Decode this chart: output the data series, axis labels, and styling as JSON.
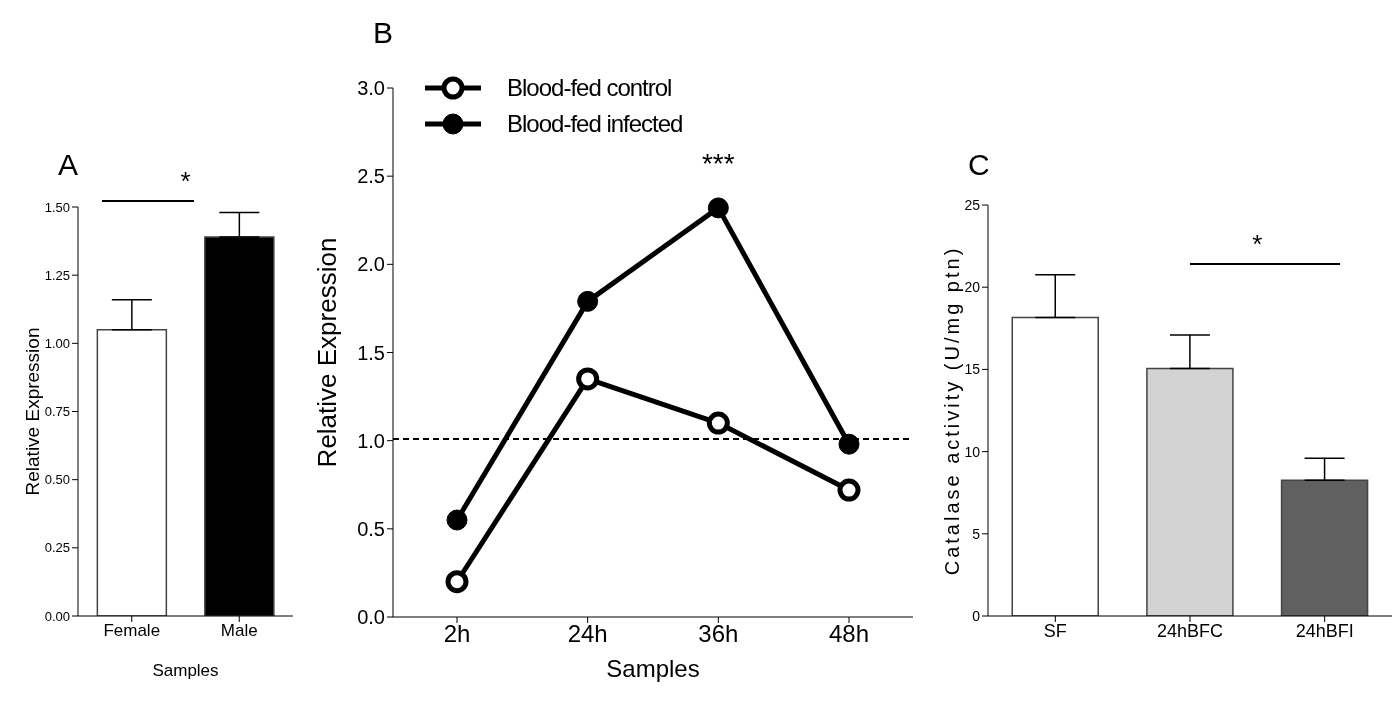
{
  "chart_data": [
    {
      "type": "bar",
      "title": "A",
      "xlabel": "Samples",
      "ylabel": "Relative Expression",
      "categories": [
        "Female",
        "Male"
      ],
      "values": [
        1.05,
        1.39
      ],
      "colors": [
        "#ffffff",
        "#000000"
      ],
      "errors": [
        [
          1.05,
          1.16
        ],
        [
          1.39,
          1.48
        ]
      ],
      "ylim": [
        0,
        1.5
      ],
      "yticks": [
        {
          "value": 0,
          "label": "0.00"
        },
        {
          "value": 0.25,
          "label": "0.25"
        },
        {
          "value": 0.5,
          "label": "0.50"
        },
        {
          "value": 0.75,
          "label": "0.75"
        },
        {
          "value": 1,
          "label": "1.00"
        },
        {
          "value": 1.25,
          "label": "1.25"
        },
        {
          "value": 1.5,
          "label": "1.50"
        }
      ],
      "grid": false,
      "legend": false,
      "annotations": [
        "*"
      ]
    },
    {
      "type": "line",
      "title": "B",
      "xlabel": "Samples",
      "ylabel": "Relative Expression",
      "categories": [
        "2h",
        "24h",
        "36h",
        "48h"
      ],
      "series": [
        {
          "name": "Blood-fed control",
          "color": "#000000",
          "values": [
            0.2,
            1.35,
            1.1,
            0.72
          ]
        },
        {
          "name": "Blood-fed infected",
          "color": "#000000",
          "values": [
            0.55,
            1.79,
            2.32,
            0.98
          ]
        }
      ],
      "ylim": [
        0,
        3
      ],
      "yticks": [
        {
          "value": 0,
          "label": "0.0"
        },
        0.5,
        {
          "value": 1,
          "label": "1.0"
        },
        1.5,
        {
          "value": 2,
          "label": "2.0"
        },
        2.5,
        {
          "value": 3,
          "label": "3.0"
        }
      ],
      "ref_lines": [
        {
          "axis": "y",
          "value": 1.01,
          "line_style": "dashed",
          "color": "#000000"
        }
      ],
      "marker": "circle",
      "line_style": "solid",
      "grid": false,
      "legend": "top left",
      "annotations": [
        "***"
      ]
    },
    {
      "type": "bar",
      "title": "C",
      "ylabel": "Catalase activity (U/mg ptn)",
      "categories": [
        "SF",
        "24hBFC",
        "24hBFI"
      ],
      "values": [
        18.15,
        15.05,
        8.25
      ],
      "colors": [
        "#ffffff",
        "#d3d3d3",
        "#606060"
      ],
      "errors": [
        [
          18.15,
          20.75
        ],
        [
          15.05,
          17.1
        ],
        [
          8.25,
          9.6
        ]
      ],
      "ylim": [
        0,
        25
      ],
      "yticks": [
        0,
        5,
        10,
        15,
        20,
        25
      ],
      "grid": false,
      "legend": false,
      "annotations": [
        "*"
      ]
    }
  ]
}
